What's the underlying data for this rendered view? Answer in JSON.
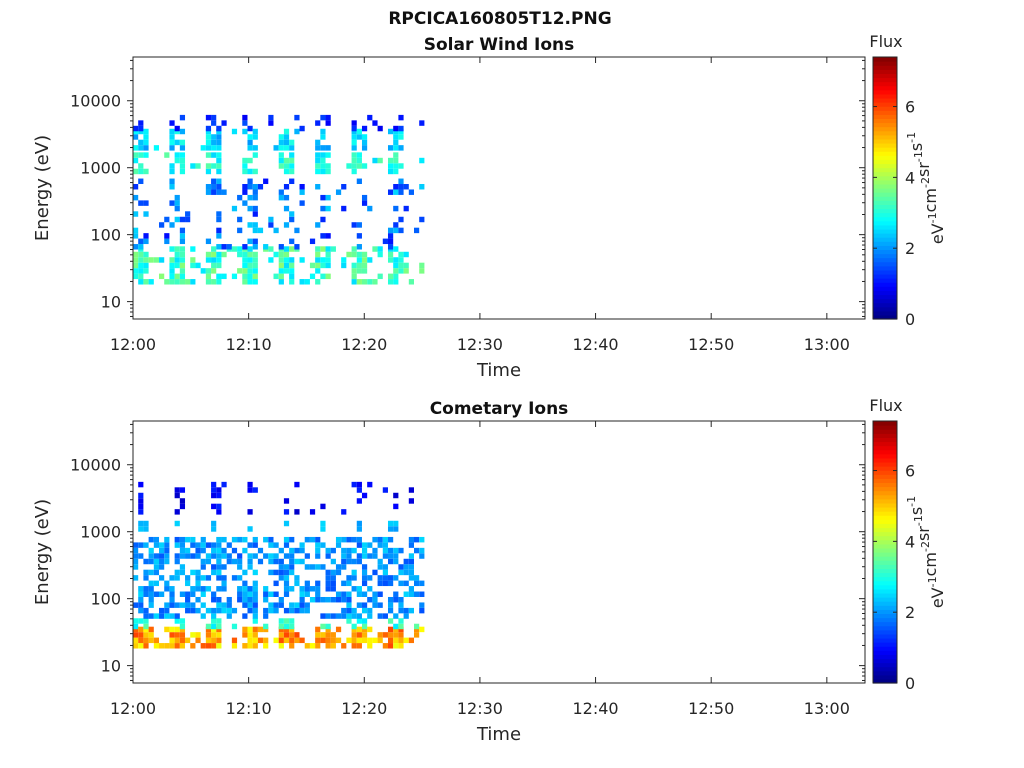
{
  "figure": {
    "title": "RPCICA160805T12.PNG"
  },
  "colorbar": {
    "label": "Flux",
    "unit_base": "eV",
    "unit_parts": [
      {
        "base": "eV",
        "exp": "-1"
      },
      {
        "base": "cm",
        "exp": "-2"
      },
      {
        "base": "sr",
        "exp": "-1"
      },
      {
        "base": "s",
        "exp": "-1"
      }
    ],
    "range": [
      0,
      7.4
    ],
    "ticks": [
      0,
      2,
      4,
      6
    ],
    "tick_labels": [
      "0",
      "2",
      "4",
      "6"
    ],
    "colormap": "jet"
  },
  "chart_data": [
    {
      "type": "heatmap",
      "title": "Solar Wind Ions",
      "xlabel": "Time",
      "ylabel": "Energy (eV)",
      "x_ticks": [
        "12:00",
        "12:10",
        "12:20",
        "12:30",
        "12:40",
        "12:50",
        "13:00"
      ],
      "x_tick_minutes": [
        0,
        10,
        20,
        30,
        40,
        50,
        60
      ],
      "xlim_minutes": [
        0,
        63.3
      ],
      "y_scale": "log",
      "ylim": [
        5.5,
        45000
      ],
      "y_ticks": [
        10,
        100,
        1000,
        10000
      ],
      "y_tick_labels": [
        "10",
        "100",
        "1000",
        "10000"
      ],
      "data_extent_minutes": [
        0,
        25
      ],
      "sweep_period_minutes": 3.1,
      "features": [
        {
          "energy_range": [
            1800,
            3500
          ],
          "flux_range": [
            2,
            3
          ]
        },
        {
          "energy_range": [
            800,
            1600
          ],
          "flux_range": [
            2.5,
            3.5
          ]
        },
        {
          "energy_range": [
            18,
            60
          ],
          "flux_range": [
            2.5,
            3.8
          ]
        },
        {
          "energy_range": [
            60,
            600
          ],
          "flux_range": [
            1,
            2.5
          ]
        },
        {
          "energy_range": [
            3500,
            6000
          ],
          "flux_range": [
            0.8,
            1.5
          ]
        }
      ]
    },
    {
      "type": "heatmap",
      "title": "Cometary Ions",
      "xlabel": "Time",
      "ylabel": "Energy (eV)",
      "x_ticks": [
        "12:00",
        "12:10",
        "12:20",
        "12:30",
        "12:40",
        "12:50",
        "13:00"
      ],
      "x_tick_minutes": [
        0,
        10,
        20,
        30,
        40,
        50,
        60
      ],
      "xlim_minutes": [
        0,
        63.3
      ],
      "y_scale": "log",
      "ylim": [
        5.5,
        45000
      ],
      "y_ticks": [
        10,
        100,
        1000,
        10000
      ],
      "y_tick_labels": [
        "10",
        "100",
        "1000",
        "10000"
      ],
      "data_extent_minutes": [
        0,
        25
      ],
      "sweep_period_minutes": 3.1,
      "features": [
        {
          "energy_range": [
            18,
            35
          ],
          "flux_range": [
            4.5,
            6
          ]
        },
        {
          "energy_range": [
            35,
            50
          ],
          "flux_range": [
            2.5,
            3.5
          ]
        },
        {
          "energy_range": [
            50,
            700
          ],
          "flux_range": [
            1.5,
            2.5
          ]
        },
        {
          "energy_range": [
            1000,
            1300
          ],
          "flux_range": [
            2,
            2.5
          ]
        },
        {
          "energy_range": [
            1800,
            5500
          ],
          "flux_range": [
            0.5,
            1.2
          ]
        }
      ]
    }
  ]
}
